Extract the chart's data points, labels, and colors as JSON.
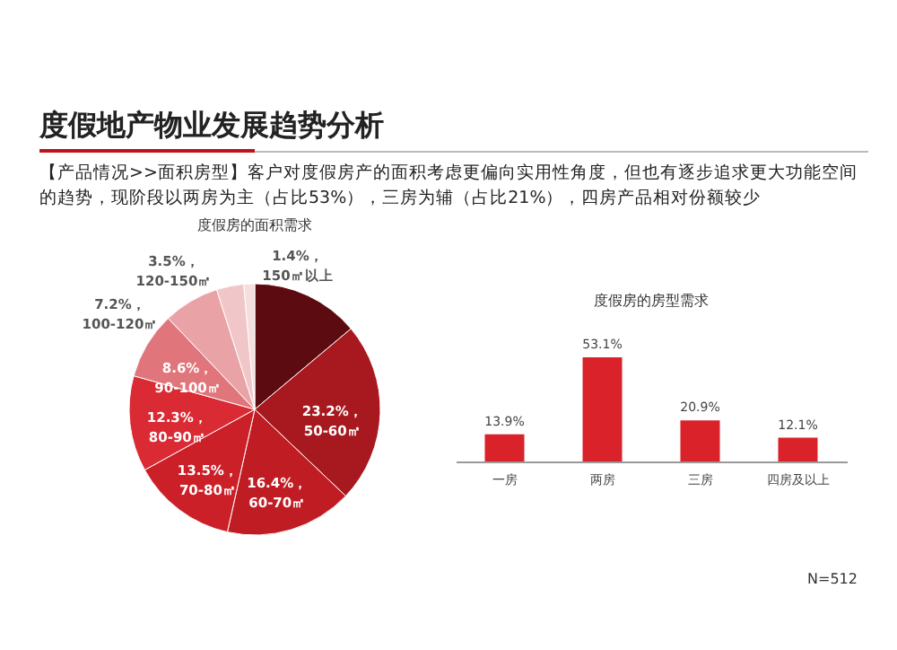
{
  "chart_data": [
    {
      "type": "other",
      "title": "度假地产物业发展趋势分析",
      "subtitle": "【产品情况>>面积房型】客户对度假房产的面积考虑更偏向实用性角度，但也有逐步追求更大功能空间的趋势，现阶段以两房为主（占比53%），三房为辅（占比21%），四房产品相对份额较少"
    },
    {
      "type": "pie",
      "title": "度假房的面积需求",
      "categories": [
        null,
        "50-60㎡",
        "60-70㎡",
        "70-80㎡",
        "80-90㎡",
        "90-100㎡",
        "100-120㎡",
        "120-150㎡",
        "150㎡以上"
      ],
      "values": [
        13.9,
        23.2,
        16.4,
        13.5,
        12.3,
        8.6,
        7.2,
        3.5,
        1.4
      ],
      "colors": [
        "#5c0c10",
        "#a8181f",
        "#c01c24",
        "#cc2029",
        "#da2a33",
        "#e0757b",
        "#e9a3a7",
        "#f0c6c8",
        "#f5dede"
      ],
      "value_labels": [
        null,
        "23.2%，",
        "16.4%，",
        "13.5%，",
        "12.3%，",
        "8.6%，",
        "7.2%，",
        "3.5%，",
        "1.4%，"
      ]
    },
    {
      "type": "bar",
      "title": "度假房的房型需求",
      "categories": [
        "一房",
        "两房",
        "三房",
        "四房及以上"
      ],
      "values": [
        13.9,
        53.1,
        20.9,
        12.1
      ],
      "color": "#d9222a",
      "value_labels": [
        "13.9%",
        "53.1%",
        "20.9%",
        "12.1%"
      ],
      "annotations": [
        "N=512"
      ]
    }
  ]
}
